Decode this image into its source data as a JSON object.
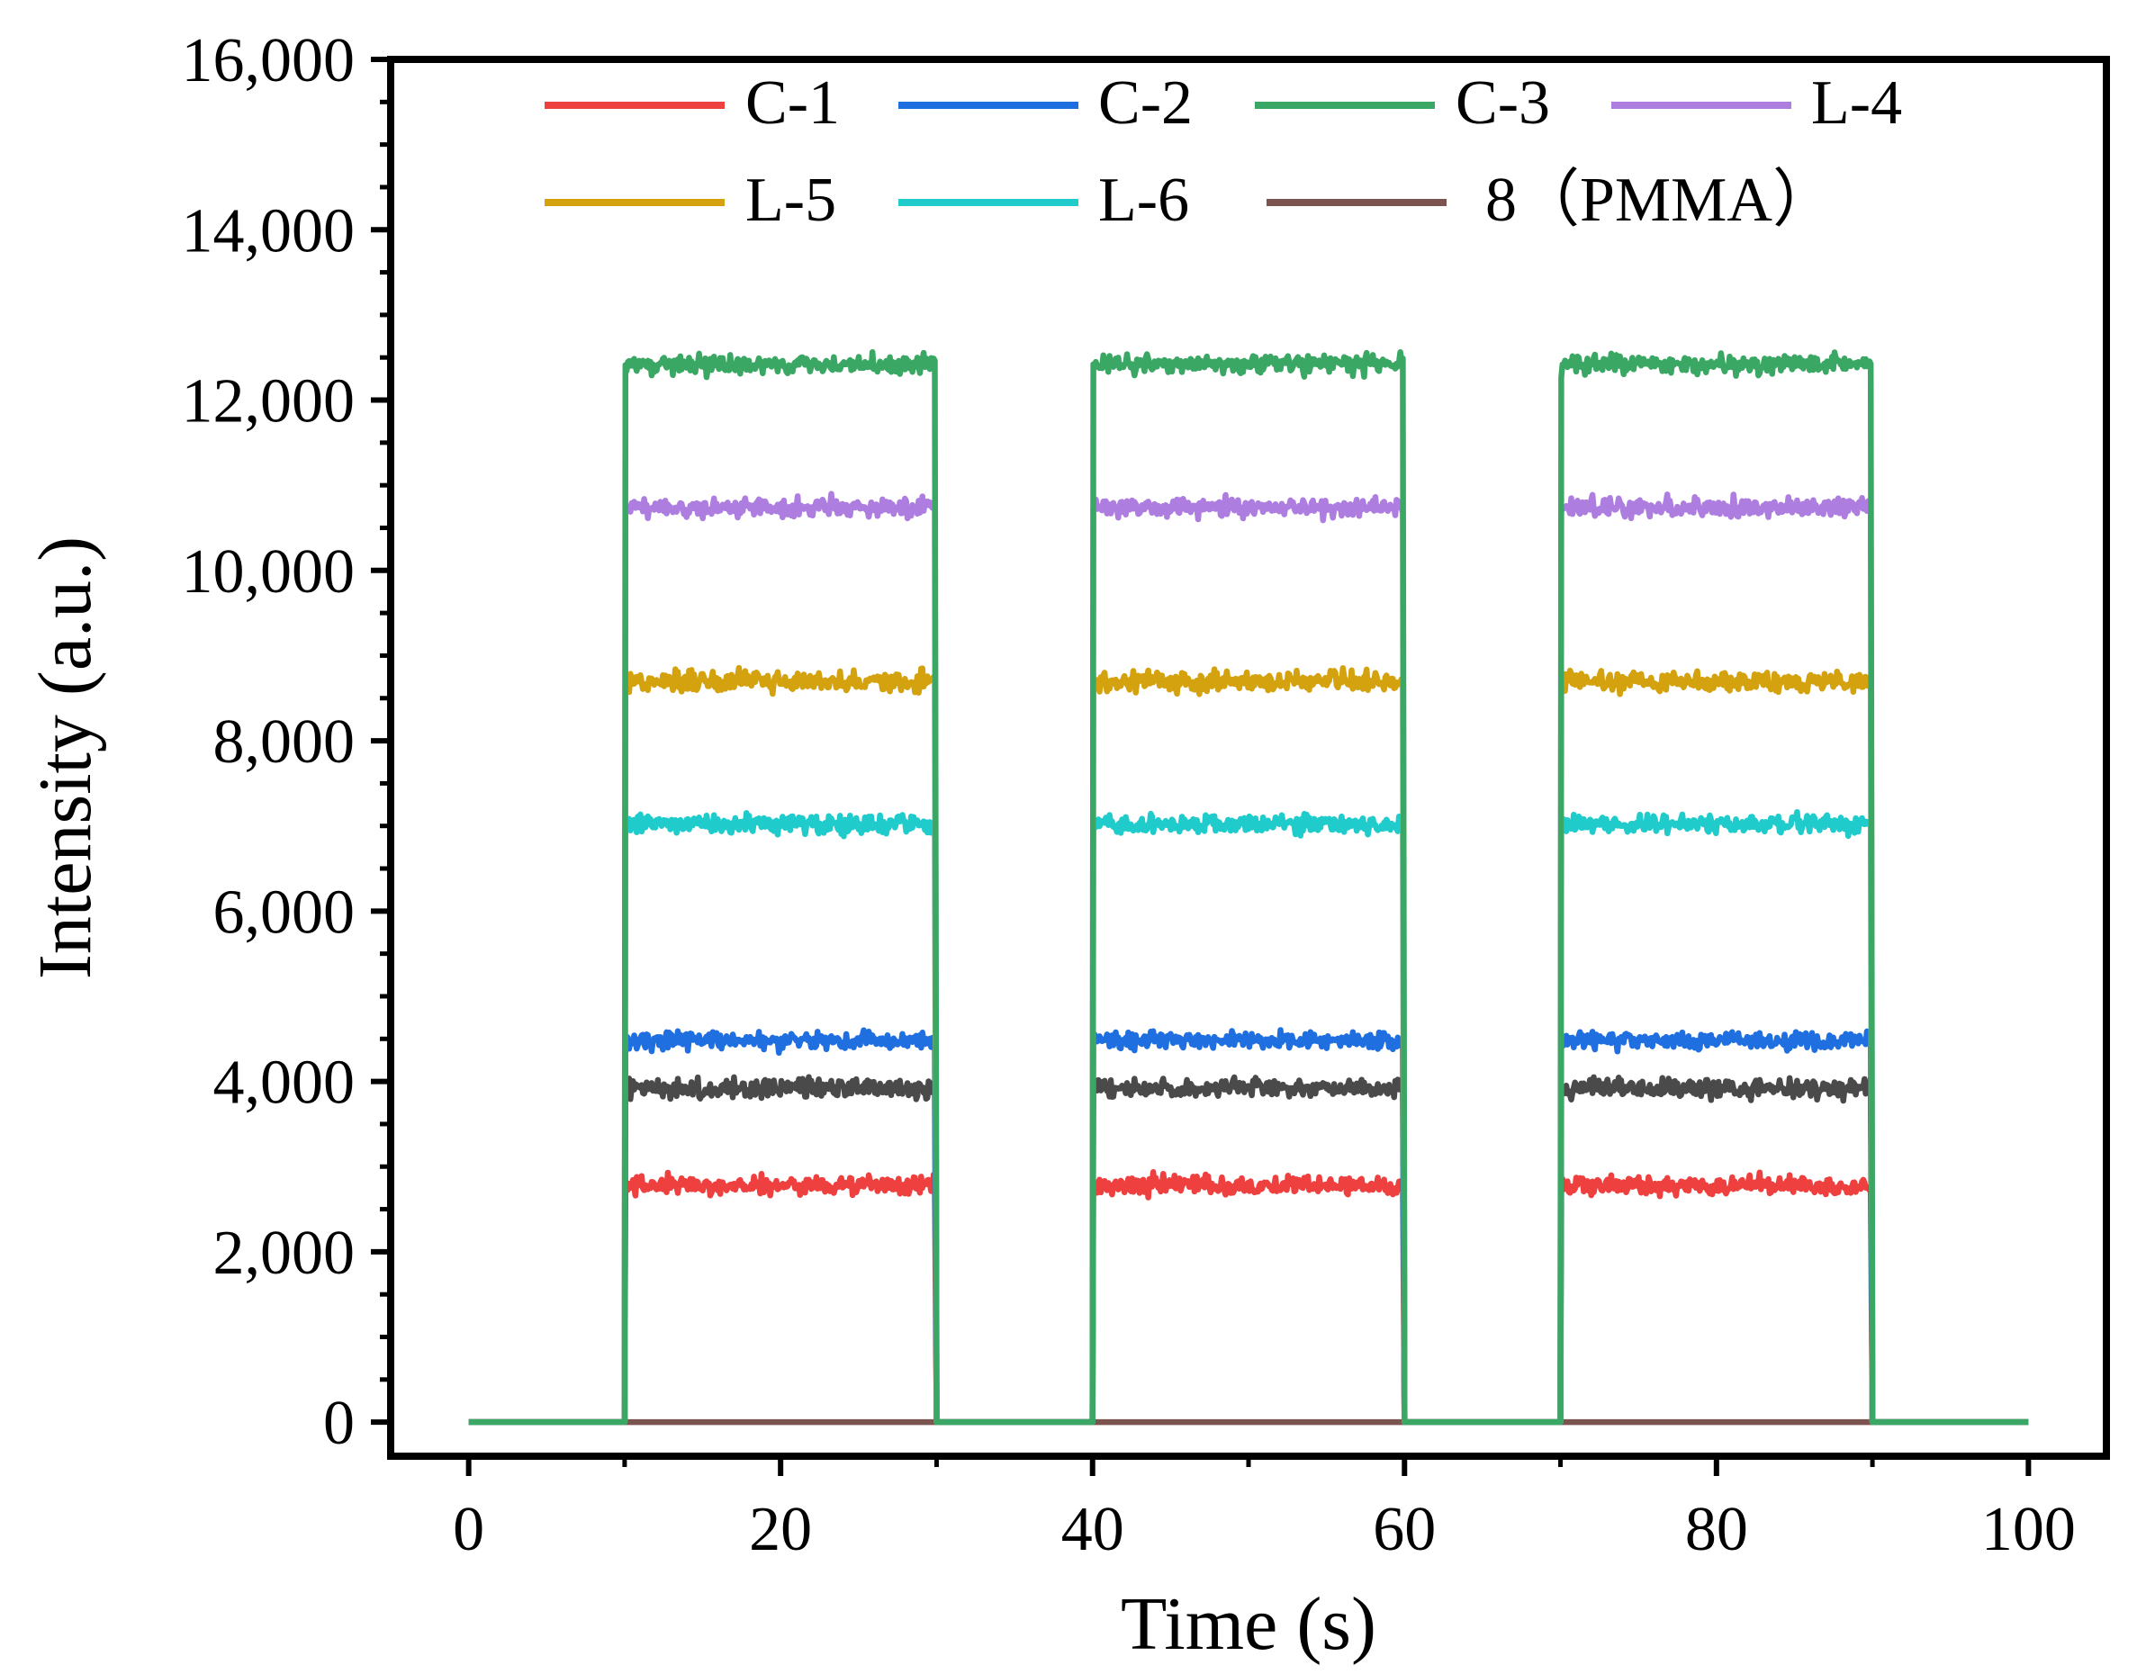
{
  "chart_data": {
    "type": "line",
    "title": "",
    "xlabel": "Time (s)",
    "ylabel": "Intensity (a.u.)",
    "xlim": [
      -5,
      105
    ],
    "ylim": [
      -400,
      16000
    ],
    "xticks": [
      0,
      20,
      40,
      60,
      80,
      100
    ],
    "xtick_labels": [
      "0",
      "20",
      "40",
      "60",
      "80",
      "100"
    ],
    "yticks": [
      0,
      2000,
      4000,
      6000,
      8000,
      10000,
      12000,
      14000,
      16000
    ],
    "ytick_labels": [
      "0",
      "2,000",
      "4,000",
      "6,000",
      "8,000",
      "10,000",
      "12,000",
      "14,000",
      "16,000"
    ],
    "grid": false,
    "legend_position": "top",
    "on_intervals": [
      [
        10,
        30
      ],
      [
        40,
        60
      ],
      [
        70,
        90
      ]
    ],
    "baseline": 0,
    "series": [
      {
        "name": "C-1",
        "label": "C-1",
        "color": "#ef4040",
        "level": 2780,
        "noise": 55
      },
      {
        "name": "C-2",
        "label": "C-2",
        "color": "#1f6fe0",
        "level": 4480,
        "noise": 50
      },
      {
        "name": "C-3",
        "label": "C-3",
        "color": "#3aa864",
        "level": 12420,
        "noise": 55
      },
      {
        "name": "L-4",
        "label": "L-4",
        "color": "#ad7ee0",
        "level": 10740,
        "noise": 55
      },
      {
        "name": "L-5",
        "label": "L-5",
        "color": "#d4a20e",
        "level": 8700,
        "noise": 60
      },
      {
        "name": "L-6",
        "label": "L-6",
        "color": "#1fcbcb",
        "level": 7020,
        "noise": 55
      },
      {
        "name": "8（PMMA）",
        "label": "8（PMMA）",
        "color": "#7b5450",
        "level": 0,
        "noise": 0
      },
      {
        "name": "unlabeled",
        "label": "",
        "color": "#4a4a4a",
        "level": 3920,
        "noise": 55
      }
    ]
  }
}
